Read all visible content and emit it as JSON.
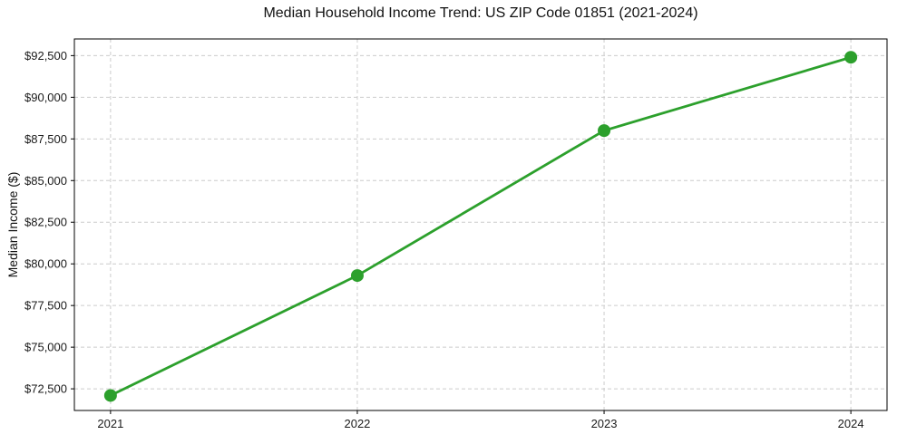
{
  "chart_data": {
    "type": "line",
    "title": "Median Household Income Trend: US ZIP Code 01851 (2021-2024)",
    "xlabel": "",
    "ylabel": "Median Income ($)",
    "categories": [
      "2021",
      "2022",
      "2023",
      "2024"
    ],
    "series": [
      {
        "name": "Median Household Income",
        "values": [
          72100,
          79300,
          88000,
          92400
        ],
        "color": "#2ca02c",
        "marker": "circle"
      }
    ],
    "ylim": [
      71200,
      93500
    ],
    "y_ticks": [
      {
        "value": 72500,
        "label": "$72,500"
      },
      {
        "value": 75000,
        "label": "$75,000"
      },
      {
        "value": 77500,
        "label": "$77,500"
      },
      {
        "value": 80000,
        "label": "$80,000"
      },
      {
        "value": 82500,
        "label": "$82,500"
      },
      {
        "value": 85000,
        "label": "$85,000"
      },
      {
        "value": 87500,
        "label": "$87,500"
      },
      {
        "value": 90000,
        "label": "$90,000"
      },
      {
        "value": 92500,
        "label": "$92,500"
      }
    ],
    "grid": "both-dashed",
    "legend": "none",
    "colors": {
      "line": "#2ca02c",
      "grid": "#cccccc",
      "spine": "#000000",
      "text": "#1a1a1a",
      "background": "#ffffff"
    }
  }
}
